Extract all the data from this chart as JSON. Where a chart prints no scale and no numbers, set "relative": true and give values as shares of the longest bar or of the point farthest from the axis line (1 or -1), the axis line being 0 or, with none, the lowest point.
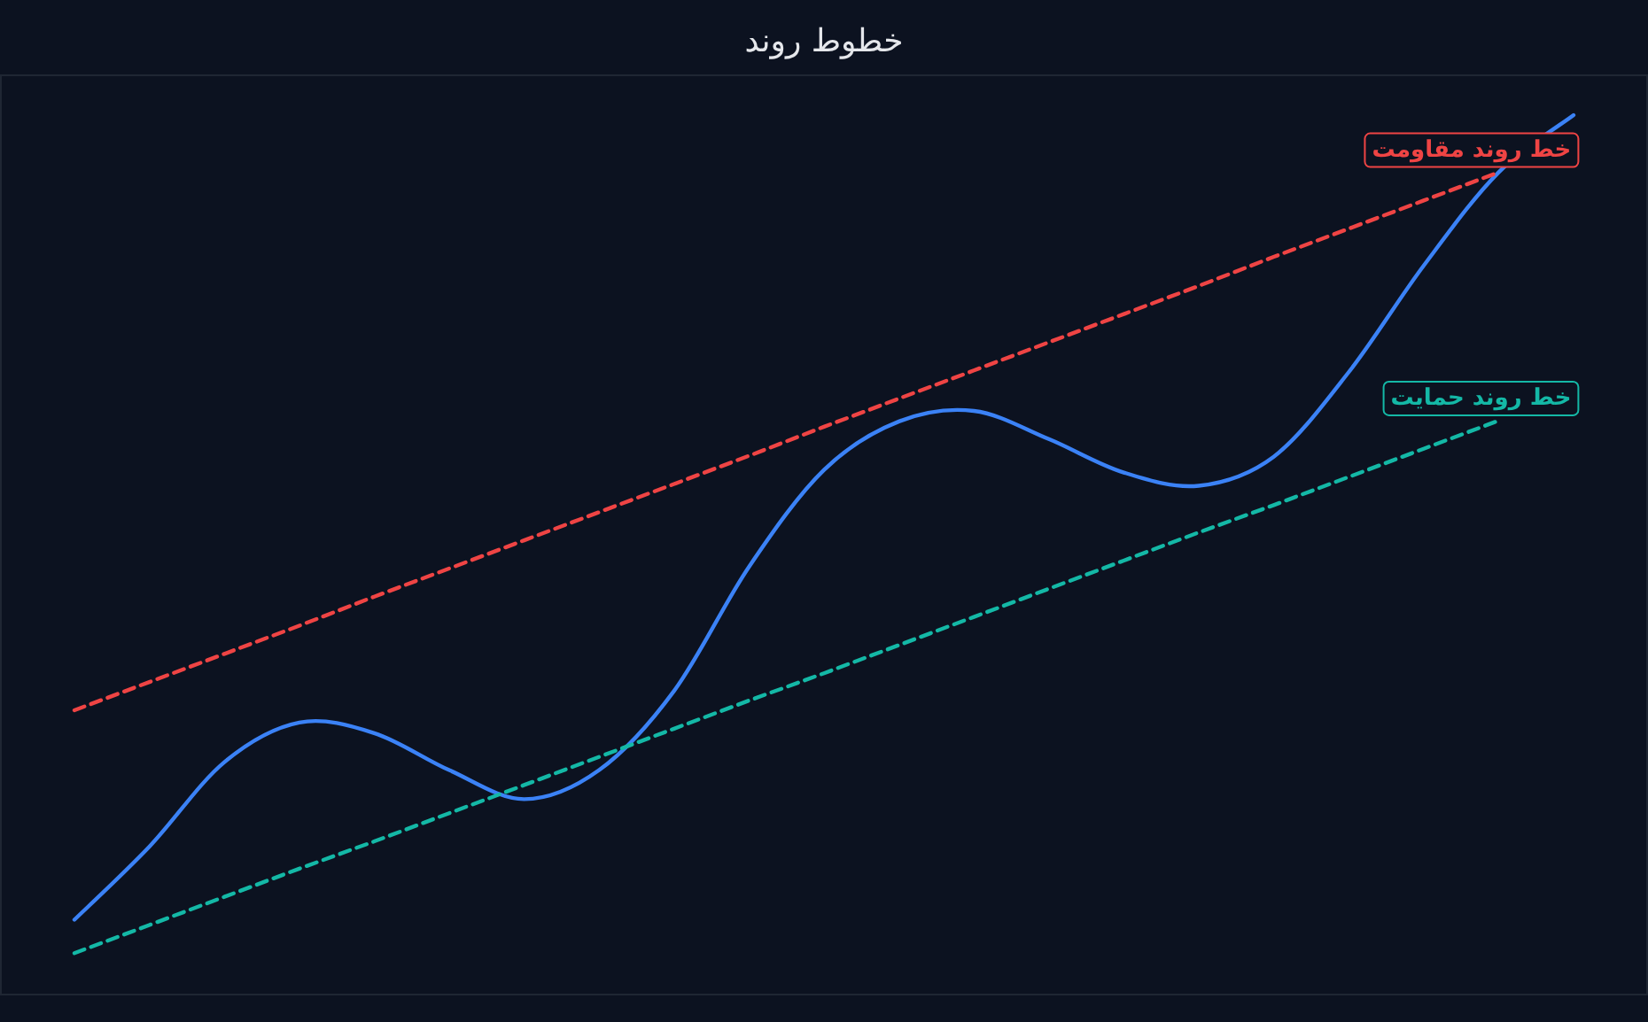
{
  "chart_data": {
    "type": "line",
    "title": "خطوط روند",
    "relative": true,
    "categories": [
      null,
      null,
      null,
      null,
      null,
      null,
      null,
      null,
      null,
      null,
      null,
      null,
      null,
      null,
      null,
      null,
      null,
      null,
      null,
      null,
      null
    ],
    "series": [
      {
        "color": "#3b82f6",
        "line_style": "solid",
        "values": [
          0.086,
          0.169,
          0.265,
          0.31,
          0.298,
          0.256,
          0.223,
          0.256,
          0.346,
          0.487,
          0.597,
          0.652,
          0.664,
          0.632,
          0.594,
          0.579,
          0.612,
          0.708,
          0.829,
          0.935,
          1.0
        ]
      },
      {
        "color": "#ef4444",
        "line_style": "dashed",
        "values": [
          0.324,
          0.356,
          0.388,
          0.42,
          0.453,
          0.485,
          0.517,
          0.549,
          0.581,
          0.613,
          0.646,
          0.678,
          0.71,
          0.742,
          0.774,
          0.806,
          0.839,
          0.871,
          0.903,
          0.935,
          null
        ]
      },
      {
        "color": "#14b8a6",
        "line_style": "dashed",
        "values": [
          0.048,
          0.08,
          0.112,
          0.144,
          0.175,
          0.207,
          0.239,
          0.271,
          0.303,
          0.335,
          0.366,
          0.398,
          0.43,
          0.462,
          0.494,
          0.526,
          0.557,
          0.589,
          0.621,
          0.653,
          null
        ]
      }
    ],
    "annotations": [
      "خط روند مقاومت",
      "خط روند حمایت"
    ]
  }
}
